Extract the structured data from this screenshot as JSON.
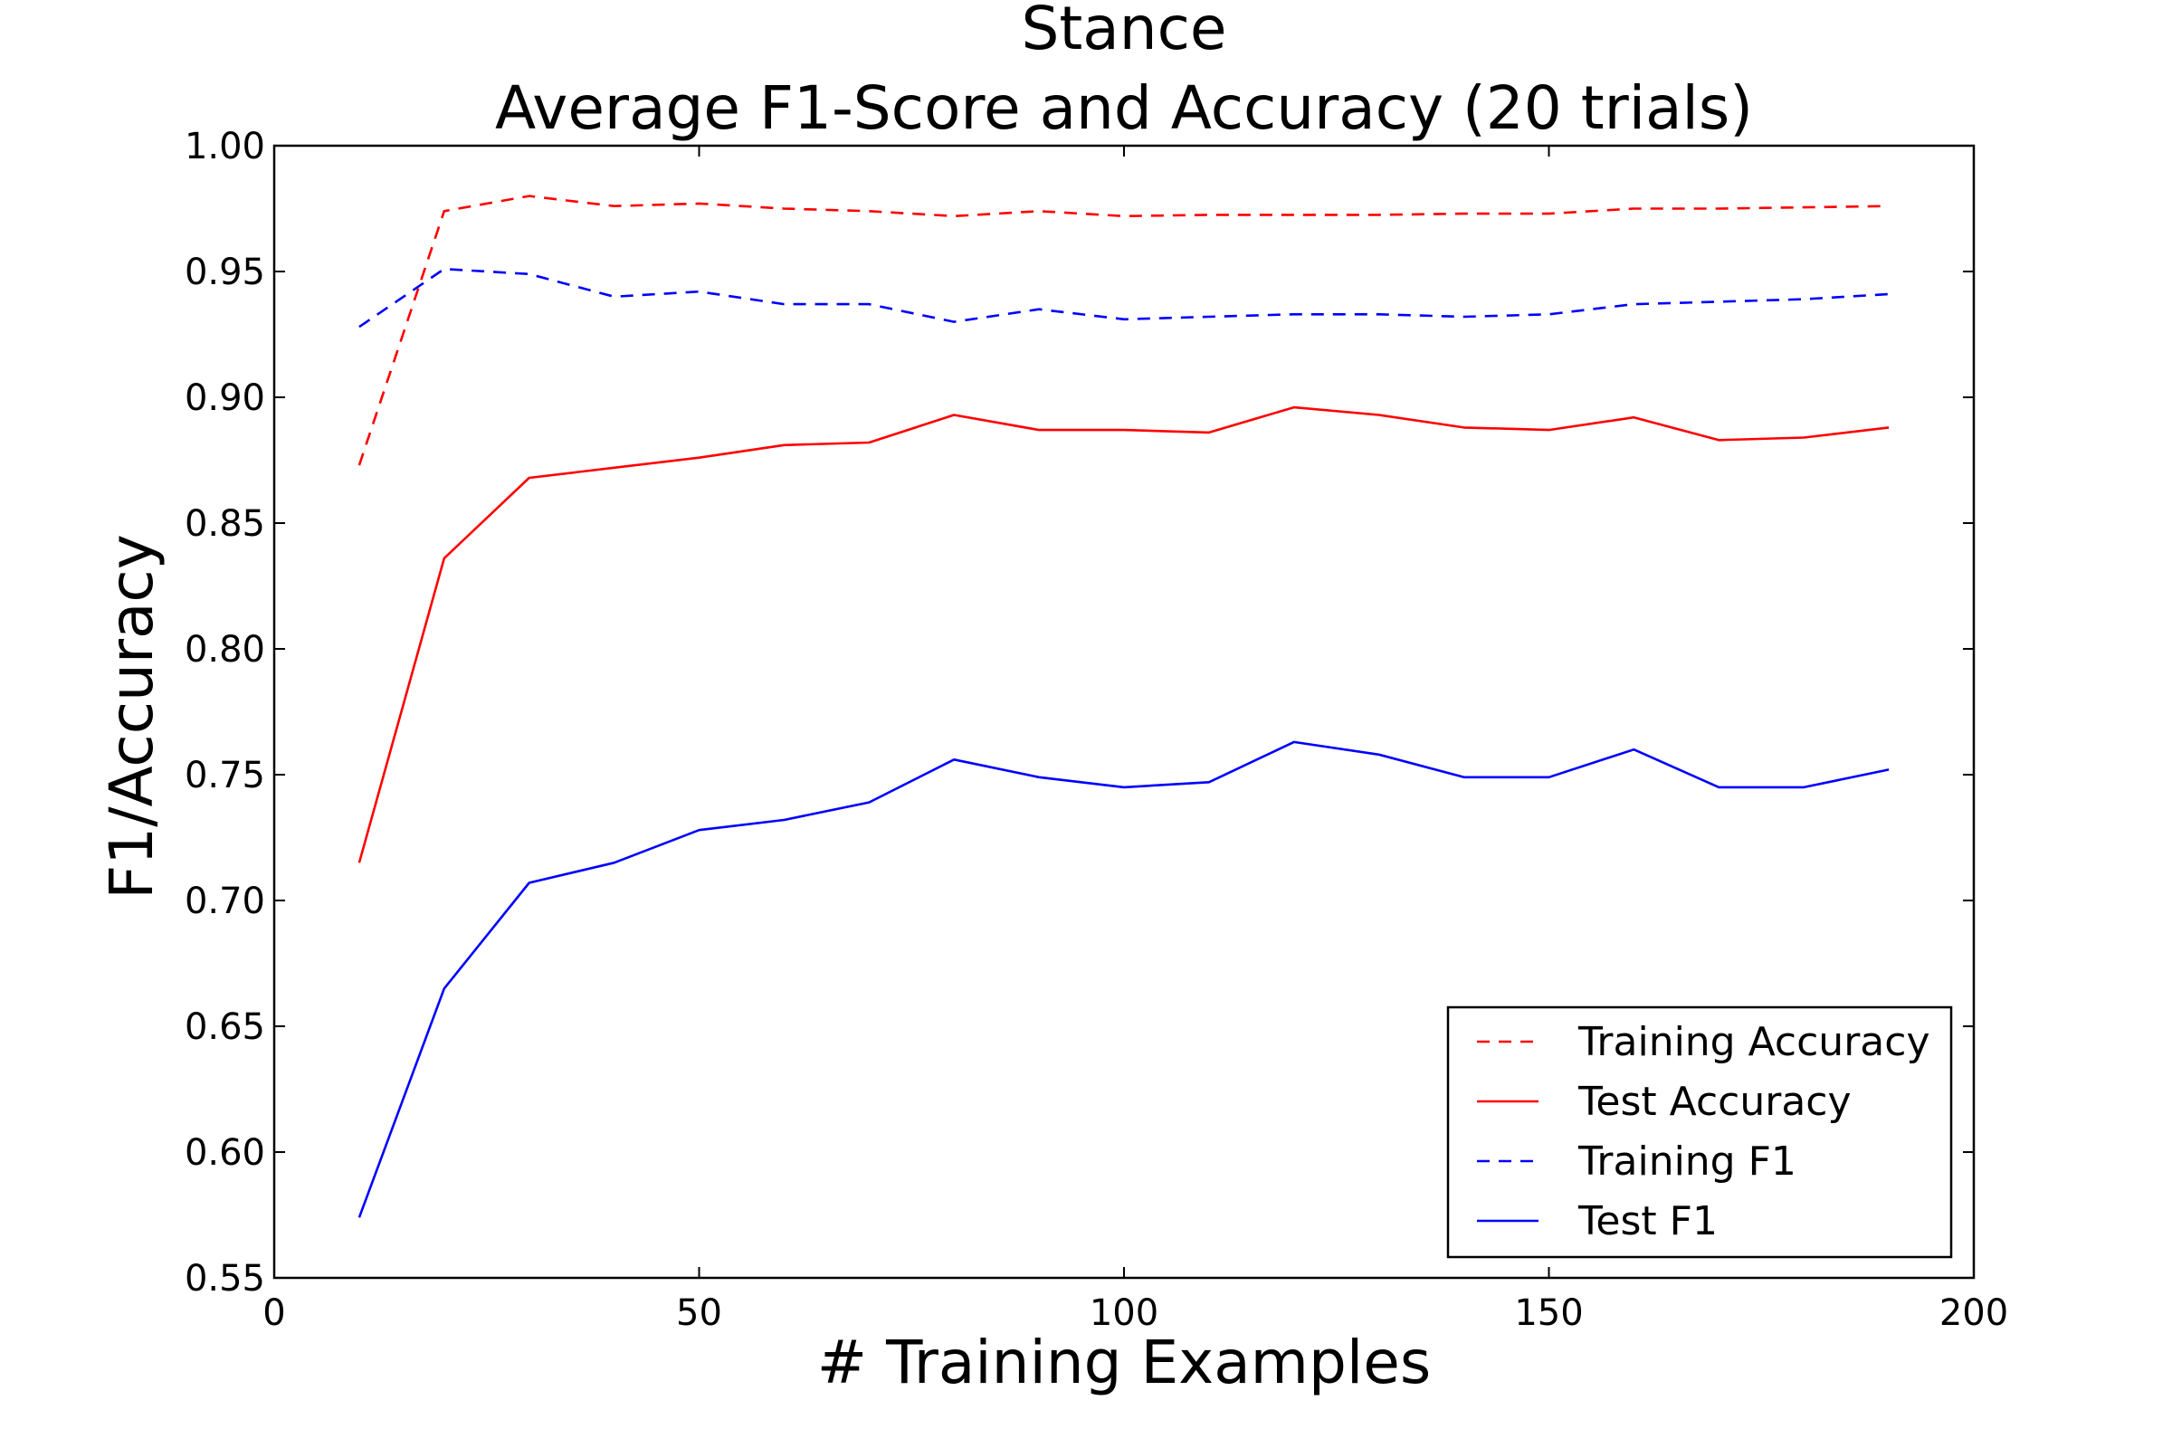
{
  "chart_data": {
    "type": "line",
    "title": "Stance",
    "subtitle": "Average F1-Score and Accuracy (20 trials)",
    "xlabel": "# Training Examples",
    "ylabel": "F1/Accuracy",
    "xlim": [
      0,
      200
    ],
    "ylim": [
      0.55,
      1.0
    ],
    "x_ticks": [
      "0",
      "50",
      "100",
      "150",
      "200"
    ],
    "y_ticks": [
      "0.55",
      "0.60",
      "0.65",
      "0.70",
      "0.75",
      "0.80",
      "0.85",
      "0.90",
      "0.95",
      "1.00"
    ],
    "grid": false,
    "legend_position": "lower-right",
    "x": [
      10,
      20,
      30,
      40,
      50,
      60,
      70,
      80,
      90,
      100,
      110,
      120,
      130,
      140,
      150,
      160,
      170,
      180,
      190
    ],
    "series": [
      {
        "name": "Training Accuracy",
        "color": "#ff0000",
        "style": "dashed",
        "values": [
          0.873,
          0.974,
          0.98,
          0.976,
          0.977,
          0.975,
          0.974,
          0.972,
          0.974,
          0.972,
          0.9725,
          0.9725,
          0.9725,
          0.973,
          0.973,
          0.975,
          0.975,
          0.9755,
          0.976
        ]
      },
      {
        "name": "Test Accuracy",
        "color": "#ff0000",
        "style": "solid",
        "values": [
          0.715,
          0.836,
          0.868,
          0.872,
          0.876,
          0.881,
          0.882,
          0.893,
          0.887,
          0.887,
          0.886,
          0.896,
          0.893,
          0.888,
          0.887,
          0.892,
          0.883,
          0.884,
          0.888
        ]
      },
      {
        "name": "Training F1",
        "color": "#0000ff",
        "style": "dashed",
        "values": [
          0.928,
          0.951,
          0.949,
          0.94,
          0.942,
          0.937,
          0.937,
          0.93,
          0.935,
          0.931,
          0.932,
          0.933,
          0.933,
          0.932,
          0.933,
          0.937,
          0.938,
          0.939,
          0.941
        ]
      },
      {
        "name": "Test F1",
        "color": "#0000ff",
        "style": "solid",
        "values": [
          0.574,
          0.665,
          0.707,
          0.715,
          0.728,
          0.732,
          0.739,
          0.756,
          0.749,
          0.745,
          0.747,
          0.763,
          0.758,
          0.749,
          0.749,
          0.76,
          0.745,
          0.745,
          0.752
        ]
      }
    ]
  }
}
